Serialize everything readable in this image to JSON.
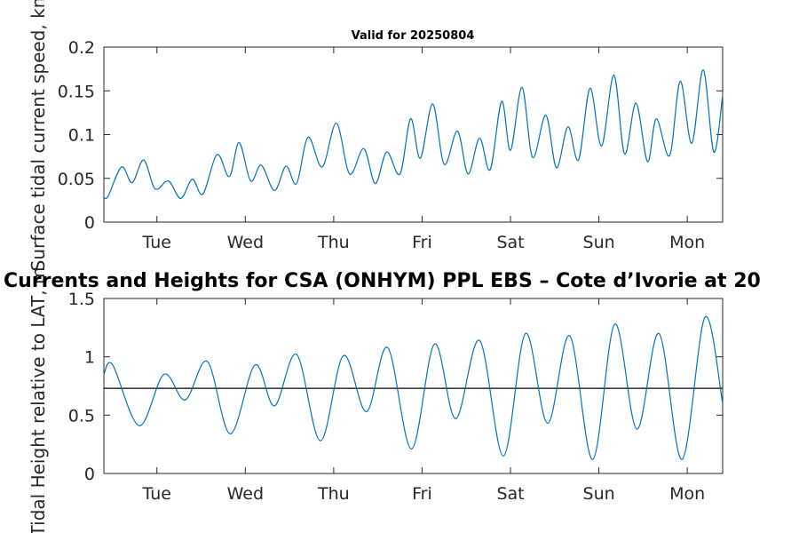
{
  "chart_data": [
    {
      "type": "line",
      "title": "Valid for 20250804",
      "ylabel": "Surface tidal current speed, kn",
      "xlim": [
        0,
        7
      ],
      "ylim": [
        0,
        0.2
      ],
      "yticks": [
        "0",
        "0.05",
        "0.1",
        "0.15",
        "0.2"
      ],
      "xtick_labels": [
        "Tue",
        "Wed",
        "Thu",
        "Fri",
        "Sat",
        "Sun",
        "Mon"
      ],
      "xtick_positions": [
        0.6,
        1.6,
        2.6,
        3.6,
        4.6,
        5.6,
        6.6
      ],
      "line_color": "#0072BD",
      "series": [
        {
          "x": [
            0,
            0.05,
            0.2,
            0.32,
            0.45,
            0.58,
            0.73,
            0.87,
            1.0,
            1.12,
            1.28,
            1.42,
            1.53,
            1.66,
            1.78,
            1.93,
            2.06,
            2.18,
            2.31,
            2.47,
            2.63,
            2.78,
            2.94,
            3.07,
            3.2,
            3.35,
            3.47,
            3.58,
            3.72,
            3.85,
            4.0,
            4.12,
            4.25,
            4.37,
            4.5,
            4.6,
            4.73,
            4.85,
            5.0,
            5.12,
            5.25,
            5.37,
            5.5,
            5.63,
            5.77,
            5.89,
            6.02,
            6.15,
            6.25,
            6.4,
            6.52,
            6.65,
            6.78,
            6.9,
            7.0
          ],
          "y": [
            0.028,
            0.03,
            0.063,
            0.045,
            0.071,
            0.038,
            0.047,
            0.027,
            0.049,
            0.032,
            0.077,
            0.052,
            0.091,
            0.047,
            0.065,
            0.036,
            0.064,
            0.044,
            0.097,
            0.063,
            0.113,
            0.055,
            0.084,
            0.044,
            0.08,
            0.055,
            0.118,
            0.073,
            0.135,
            0.066,
            0.104,
            0.055,
            0.096,
            0.06,
            0.138,
            0.082,
            0.154,
            0.074,
            0.122,
            0.062,
            0.109,
            0.071,
            0.153,
            0.087,
            0.168,
            0.078,
            0.136,
            0.069,
            0.118,
            0.076,
            0.161,
            0.09,
            0.174,
            0.08,
            0.145
          ]
        }
      ]
    },
    {
      "type": "line",
      "title": "Currents and Heights for CSA (ONHYM) PPL EBS  – Cote d’Ivorie at 20",
      "ylabel": "Tidal Height relative to LAT, m",
      "xlim": [
        0,
        7
      ],
      "ylim": [
        0,
        1.5
      ],
      "yticks": [
        "0",
        "0.5",
        "1",
        "1.5"
      ],
      "xtick_labels": [
        "Tue",
        "Wed",
        "Thu",
        "Fri",
        "Sat",
        "Sun",
        "Mon"
      ],
      "xtick_positions": [
        0.6,
        1.6,
        2.6,
        3.6,
        4.6,
        5.6,
        6.6
      ],
      "line_color": "#0072BD",
      "reference_line": 0.73,
      "reference_color": "#000000",
      "series": [
        {
          "x": [
            0,
            0.1,
            0.4,
            0.68,
            0.92,
            1.17,
            1.43,
            1.71,
            1.93,
            2.18,
            2.45,
            2.71,
            2.97,
            3.21,
            3.48,
            3.74,
            3.98,
            4.25,
            4.52,
            4.77,
            5.02,
            5.27,
            5.53,
            5.78,
            6.03,
            6.28,
            6.54,
            6.8,
            7.0
          ],
          "y": [
            0.85,
            0.93,
            0.41,
            0.85,
            0.63,
            0.96,
            0.34,
            0.93,
            0.58,
            1.02,
            0.28,
            1.01,
            0.53,
            1.08,
            0.21,
            1.11,
            0.47,
            1.14,
            0.15,
            1.2,
            0.43,
            1.18,
            0.12,
            1.28,
            0.38,
            1.2,
            0.12,
            1.34,
            0.6
          ]
        }
      ]
    }
  ]
}
